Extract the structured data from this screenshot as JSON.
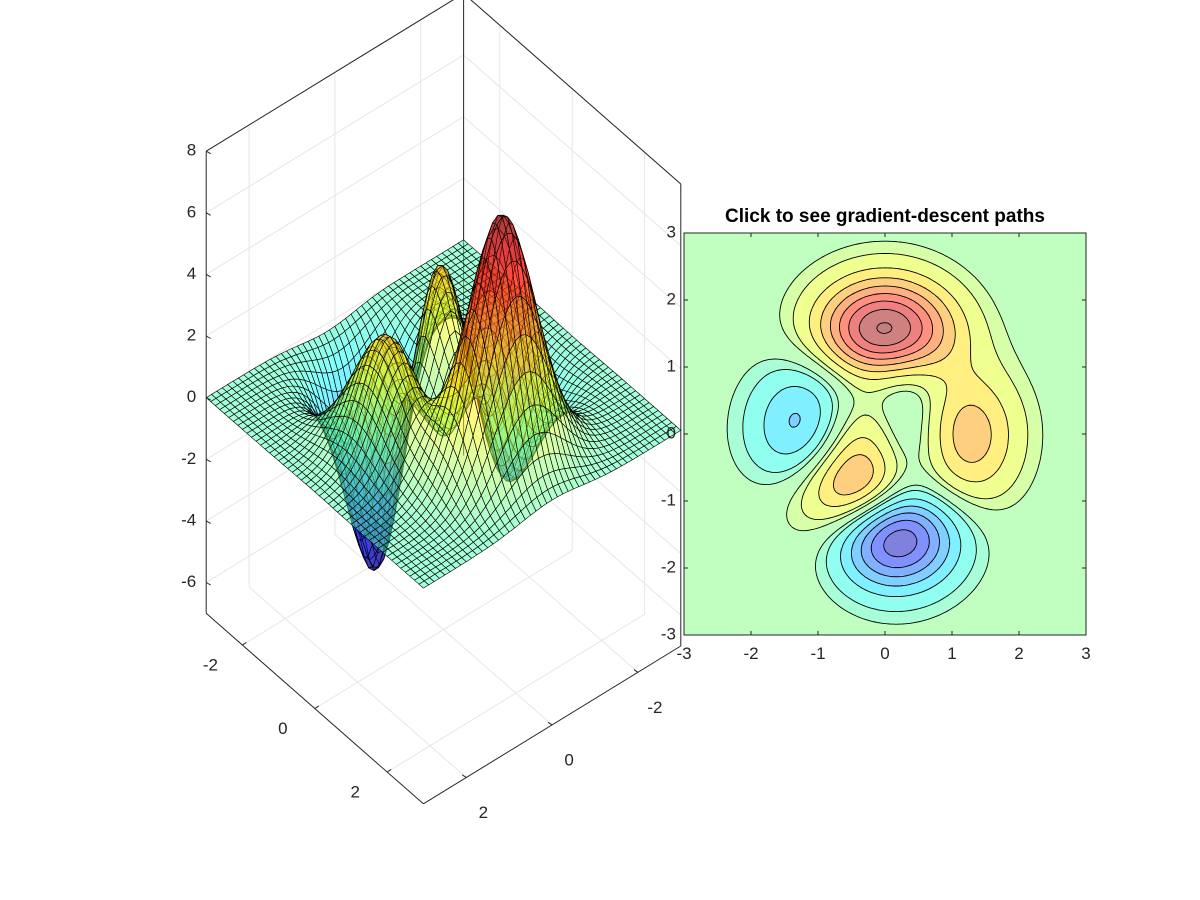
{
  "chart_data": [
    {
      "type": "surface",
      "function": "peaks",
      "x_range": [
        -3,
        3
      ],
      "y_range": [
        -3,
        3
      ],
      "zlim": [
        -7,
        8
      ],
      "grid_points": 49,
      "colormap": "jet",
      "face_alpha": 0.5,
      "edge_color": "#000000",
      "grid": true,
      "x_ticks": [
        {
          "v": -2,
          "label": "-2"
        },
        {
          "v": 0,
          "label": "0"
        },
        {
          "v": 2,
          "label": "2"
        }
      ],
      "y_ticks": [
        {
          "v": -2,
          "label": "-2"
        },
        {
          "v": 0,
          "label": "0"
        },
        {
          "v": 2,
          "label": "2"
        }
      ],
      "z_ticks": [
        {
          "v": -6,
          "label": "-6"
        },
        {
          "v": -4,
          "label": "-4"
        },
        {
          "v": -2,
          "label": "-2"
        },
        {
          "v": 0,
          "label": "0"
        },
        {
          "v": 2,
          "label": "2"
        },
        {
          "v": 4,
          "label": "4"
        },
        {
          "v": 6,
          "label": "6"
        },
        {
          "v": 8,
          "label": "8"
        }
      ]
    },
    {
      "type": "contour",
      "function": "peaks",
      "title": "Click to see gradient-descent paths",
      "xlim": [
        -3,
        3
      ],
      "ylim": [
        -3,
        3
      ],
      "levels": [
        -6,
        -5,
        -4,
        -3,
        -2,
        -1,
        -0.5,
        0.5,
        1,
        2,
        3,
        4,
        5,
        6,
        7,
        8
      ],
      "filled": true,
      "colormap": "jet",
      "face_alpha": 0.5,
      "line_color": "#000000",
      "x_ticks": [
        {
          "v": -3,
          "label": "-3"
        },
        {
          "v": -2,
          "label": "-2"
        },
        {
          "v": -1,
          "label": "-1"
        },
        {
          "v": 0,
          "label": "0"
        },
        {
          "v": 1,
          "label": "1"
        },
        {
          "v": 2,
          "label": "2"
        },
        {
          "v": 3,
          "label": "3"
        }
      ],
      "y_ticks": [
        {
          "v": -3,
          "label": "-3"
        },
        {
          "v": -2,
          "label": "-2"
        },
        {
          "v": -1,
          "label": "-1"
        },
        {
          "v": 0,
          "label": "0"
        },
        {
          "v": 1,
          "label": "1"
        },
        {
          "v": 2,
          "label": "2"
        },
        {
          "v": 3,
          "label": "3"
        }
      ]
    }
  ]
}
